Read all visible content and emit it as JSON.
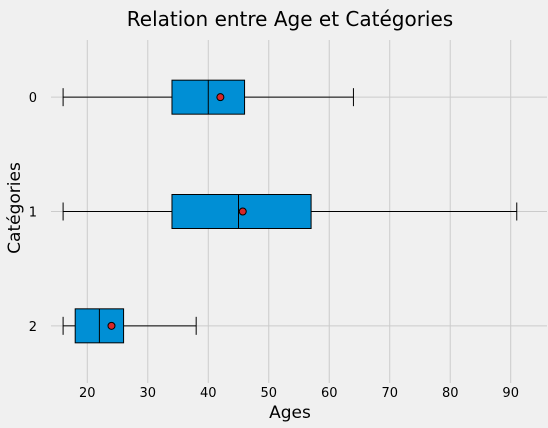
{
  "chart_data": {
    "type": "boxplot",
    "orientation": "horizontal",
    "title": "Relation entre Age et Catégories",
    "xlabel": "Ages",
    "ylabel": "Catégories",
    "xlim": [
      14,
      96
    ],
    "xticks": [
      20,
      30,
      40,
      50,
      60,
      70,
      80,
      90
    ],
    "grid": true,
    "categories": [
      "0",
      "1",
      "2"
    ],
    "boxes": [
      {
        "category": "0",
        "whisker_low": 16,
        "q1": 34,
        "median": 40,
        "q3": 46,
        "whisker_high": 64,
        "mean": 42
      },
      {
        "category": "1",
        "whisker_low": 16,
        "q1": 34,
        "median": 45,
        "q3": 57,
        "whisker_high": 91,
        "mean": 45.7
      },
      {
        "category": "2",
        "whisker_low": 16,
        "q1": 18,
        "median": 22,
        "q3": 26,
        "whisker_high": 38,
        "mean": 24
      }
    ],
    "colors": {
      "box_fill": "#008fd5",
      "mean_marker": "#d62728",
      "grid": "#cbcbcb",
      "background": "#f0f0f0"
    }
  }
}
